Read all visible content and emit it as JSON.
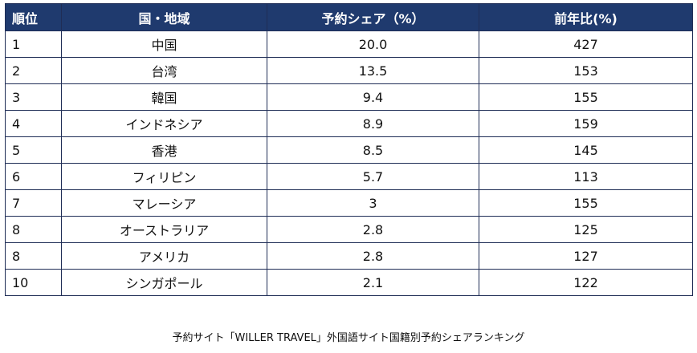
{
  "header": {
    "rank": "順位",
    "country": "国・地域",
    "share": "予約シェア（%）",
    "yoy": "前年比(%)"
  },
  "rows": [
    {
      "rank": "1",
      "country": "中国",
      "share": "20.0",
      "yoy": "427"
    },
    {
      "rank": "2",
      "country": "台湾",
      "share": "13.5",
      "yoy": "153"
    },
    {
      "rank": "3",
      "country": "韓国",
      "share": "9.4",
      "yoy": "155"
    },
    {
      "rank": "4",
      "country": "インドネシア",
      "share": "8.9",
      "yoy": "159"
    },
    {
      "rank": "5",
      "country": "香港",
      "share": "8.5",
      "yoy": "145"
    },
    {
      "rank": "6",
      "country": "フィリピン",
      "share": "5.7",
      "yoy": "113"
    },
    {
      "rank": "7",
      "country": "マレーシア",
      "share": "3",
      "yoy": "155"
    },
    {
      "rank": "8",
      "country": "オーストラリア",
      "share": "2.8",
      "yoy": "125"
    },
    {
      "rank": "8",
      "country": "アメリカ",
      "share": "2.8",
      "yoy": "127"
    },
    {
      "rank": "10",
      "country": "シンガポール",
      "share": "2.1",
      "yoy": "122"
    }
  ],
  "caption": "予約サイト「WILLER TRAVEL」外国語サイト国籍別予約シェアランキング",
  "colors": {
    "header_bg": "#1f3a6e",
    "header_text": "#ffffff",
    "border": "#1f2d56"
  },
  "chart_data": {
    "type": "table",
    "title": "予約サイト「WILLER TRAVEL」外国語サイト国籍別予約シェアランキング",
    "columns": [
      "順位",
      "国・地域",
      "予約シェア（%）",
      "前年比(%)"
    ],
    "rows": [
      [
        1,
        "中国",
        20.0,
        427
      ],
      [
        2,
        "台湾",
        13.5,
        153
      ],
      [
        3,
        "韓国",
        9.4,
        155
      ],
      [
        4,
        "インドネシア",
        8.9,
        159
      ],
      [
        5,
        "香港",
        8.5,
        145
      ],
      [
        6,
        "フィリピン",
        5.7,
        113
      ],
      [
        7,
        "マレーシア",
        3,
        155
      ],
      [
        8,
        "オーストラリア",
        2.8,
        125
      ],
      [
        8,
        "アメリカ",
        2.8,
        127
      ],
      [
        10,
        "シンガポール",
        2.1,
        122
      ]
    ]
  }
}
